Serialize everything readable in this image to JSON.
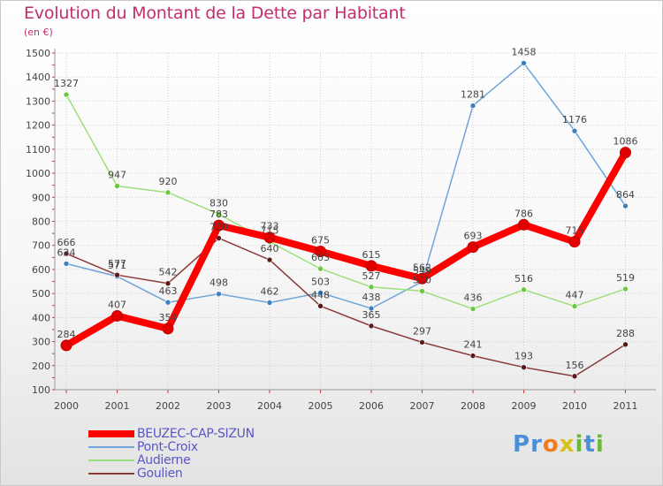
{
  "header": {
    "title": "Evolution du Montant de la Dette par Habitant",
    "unit": "(en €)"
  },
  "brand": {
    "letters": [
      {
        "ch": "P",
        "color": "#4a8fd8"
      },
      {
        "ch": "r",
        "color": "#4a8fd8"
      },
      {
        "ch": "o",
        "color": "#f07c1e"
      },
      {
        "ch": "x",
        "color": "#d8c21a"
      },
      {
        "ch": "i",
        "color": "#6cb83a"
      },
      {
        "ch": "t",
        "color": "#4a8fd8"
      },
      {
        "ch": "i",
        "color": "#6cb83a"
      }
    ]
  },
  "chart_data": {
    "type": "line",
    "title": "Evolution du Montant de la Dette par Habitant",
    "ylabel": "(en €)",
    "xlabel": "",
    "x": [
      "2000",
      "2001",
      "2002",
      "2003",
      "2004",
      "2005",
      "2006",
      "2007",
      "2008",
      "2009",
      "2010",
      "2011"
    ],
    "ylim": [
      100,
      1500
    ],
    "yticks": [
      100,
      200,
      300,
      400,
      500,
      600,
      700,
      800,
      900,
      1000,
      1100,
      1200,
      1300,
      1400,
      1500
    ],
    "grid": true,
    "legend_position": "bottom-left",
    "series": [
      {
        "name": "BEUZEC-CAP-SIZUN",
        "color": "#ff0000",
        "dot_color": "#e00000",
        "emphasis": true,
        "values": [
          284,
          407,
          354,
          783,
          733,
          675,
          615,
          562,
          693,
          786,
          715,
          1086
        ],
        "labels": [
          "284",
          "407",
          "354",
          "783",
          "733",
          "675",
          "615",
          "562",
          "693",
          "786",
          "715",
          "1086"
        ]
      },
      {
        "name": "Pont-Croix",
        "color": "#6fa5d8",
        "dot_color": "#3f7fc0",
        "emphasis": false,
        "values": [
          624,
          571,
          463,
          498,
          462,
          503,
          438,
          549,
          1281,
          1458,
          1176,
          864
        ],
        "labels": [
          "624",
          "571",
          "463",
          "498",
          "462",
          "503",
          "438",
          "549",
          "1281",
          "1458",
          "1176",
          "864"
        ]
      },
      {
        "name": "Audierne",
        "color": "#9be07a",
        "dot_color": "#6cc83f",
        "emphasis": false,
        "values": [
          1327,
          947,
          920,
          830,
          715,
          603,
          527,
          510,
          436,
          516,
          447,
          519
        ],
        "labels": [
          "1327",
          "947",
          "920",
          "830",
          "715",
          "603",
          "527",
          "510",
          "436",
          "516",
          "447",
          "519"
        ]
      },
      {
        "name": "Goulien",
        "color": "#8a3a3a",
        "dot_color": "#5a1a1a",
        "emphasis": false,
        "values": [
          666,
          577,
          542,
          730,
          640,
          448,
          365,
          297,
          241,
          193,
          156,
          288
        ],
        "labels": [
          "666",
          "577",
          "542",
          "730",
          "640",
          "448",
          "365",
          "297",
          "241",
          "193",
          "156",
          "288"
        ]
      }
    ]
  }
}
